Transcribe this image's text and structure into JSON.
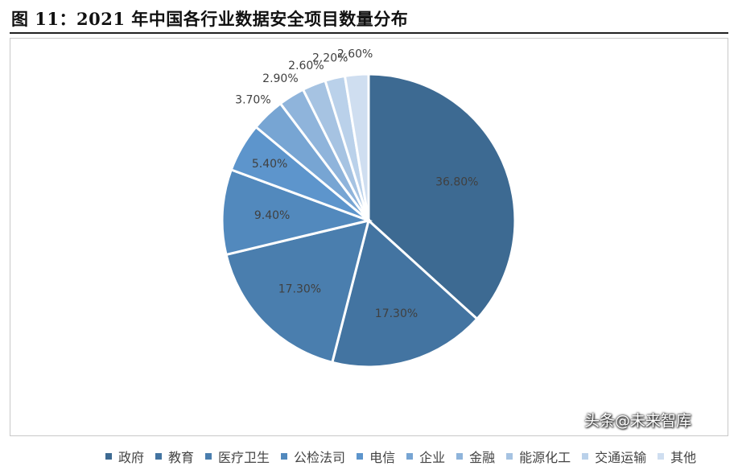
{
  "title": "图 11：2021 年中国各行业数据安全项目数量分布",
  "watermark": "头条@未来智库",
  "chart_data": {
    "type": "pie",
    "start_angle_deg": 0,
    "direction": "clockwise",
    "legend_position": "bottom",
    "slices": [
      {
        "label": "政府",
        "value": 36.8,
        "display": "36.80%",
        "color": "#3d6a92"
      },
      {
        "label": "教育",
        "value": 17.3,
        "display": "17.30%",
        "color": "#4374a1"
      },
      {
        "label": "医疗卫生",
        "value": 17.3,
        "display": "17.30%",
        "color": "#4a7eae"
      },
      {
        "label": "公检法司",
        "value": 9.4,
        "display": "9.40%",
        "color": "#5289bd"
      },
      {
        "label": "电信",
        "value": 5.4,
        "display": "5.40%",
        "color": "#5d95cc"
      },
      {
        "label": "企业",
        "value": 3.7,
        "display": "3.70%",
        "color": "#77a5d3"
      },
      {
        "label": "金融",
        "value": 2.9,
        "display": "2.90%",
        "color": "#8fb4db"
      },
      {
        "label": "能源化工",
        "value": 2.6,
        "display": "2.60%",
        "color": "#a6c3e2"
      },
      {
        "label": "交通运输",
        "value": 2.2,
        "display": "2.20%",
        "color": "#bad1ea"
      },
      {
        "label": "其他",
        "value": 2.6,
        "display": "2.60%",
        "color": "#cfdef0"
      }
    ]
  }
}
